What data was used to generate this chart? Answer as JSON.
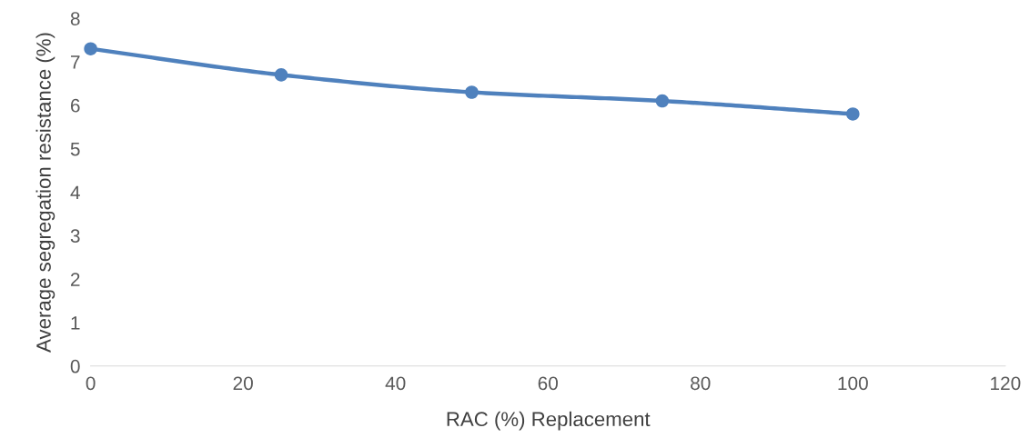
{
  "chart_data": {
    "type": "line",
    "xlabel": "RAC (%) Replacement",
    "ylabel": "Average segregation resistance (%)",
    "x": [
      0,
      25,
      50,
      75,
      100
    ],
    "series": [
      {
        "color": "#4f81bd",
        "values": [
          7.3,
          6.7,
          6.3,
          6.1,
          5.8
        ]
      }
    ],
    "xlim": [
      0,
      120
    ],
    "xticks": [
      0,
      20,
      40,
      60,
      80,
      100,
      120
    ],
    "ylim": [
      0,
      8
    ],
    "yticks": [
      0,
      1,
      2,
      3,
      4,
      5,
      6,
      7,
      8
    ],
    "marker": "circle",
    "line_style": "solid",
    "grid": false,
    "legend": false
  }
}
